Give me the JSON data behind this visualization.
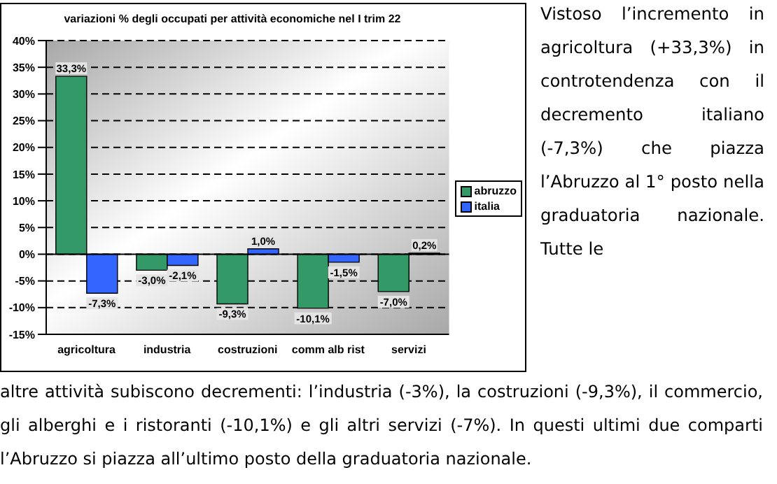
{
  "chart_data": {
    "type": "bar",
    "title": "variazioni % degli occupati per attività economiche nel I trim 22",
    "categories": [
      "agricoltura",
      "industria",
      "costruzioni",
      "comm alb rist",
      "servizi"
    ],
    "series": [
      {
        "name": "abruzzo",
        "color": "#339966",
        "values": [
          33.3,
          -3.0,
          -9.3,
          -10.1,
          -7.0
        ],
        "value_labels": [
          "33,3%",
          "-3,0%",
          "-9,3%",
          "-10,1%",
          "-7,0%"
        ]
      },
      {
        "name": "italia",
        "color": "#3366ff",
        "values": [
          -7.3,
          -2.1,
          1.0,
          -1.5,
          0.2
        ],
        "value_labels": [
          "-7,3%",
          "-2,1%",
          "1,0%",
          "-1,5%",
          "0,2%"
        ]
      }
    ],
    "ylim": [
      -15,
      40
    ],
    "yticks": [
      {
        "value": -15,
        "label": "-15%"
      },
      {
        "value": -10,
        "label": "-10%"
      },
      {
        "value": -5,
        "label": "-5%"
      },
      {
        "value": 0,
        "label": "0%"
      },
      {
        "value": 5,
        "label": "5%"
      },
      {
        "value": 10,
        "label": "10%"
      },
      {
        "value": 15,
        "label": "15%"
      },
      {
        "value": 20,
        "label": "20%"
      },
      {
        "value": 25,
        "label": "25%"
      },
      {
        "value": 30,
        "label": "30%"
      },
      {
        "value": 35,
        "label": "35%"
      },
      {
        "value": 40,
        "label": "40%"
      }
    ],
    "grid": "y",
    "line_style": "dashed",
    "legend": "right",
    "annotations": [
      "Vistoso l’incremento in agricoltura (+33,3%) in controtendenza con il decremento italiano (-7,3%) che piazza l’Abruzzo al 1° posto nella graduatoria nazionale. Tutte le",
      "altre attività subiscono decrementi: l’industria (-3%), la costruzioni (-9,3%), il commercio, gli alberghi e i ristoranti (-10,1%) e gli altri servizi (-7%). In questi ultimi due comparti l’Abruzzo si piazza all’ultimo posto della  graduatoria nazionale."
    ]
  }
}
